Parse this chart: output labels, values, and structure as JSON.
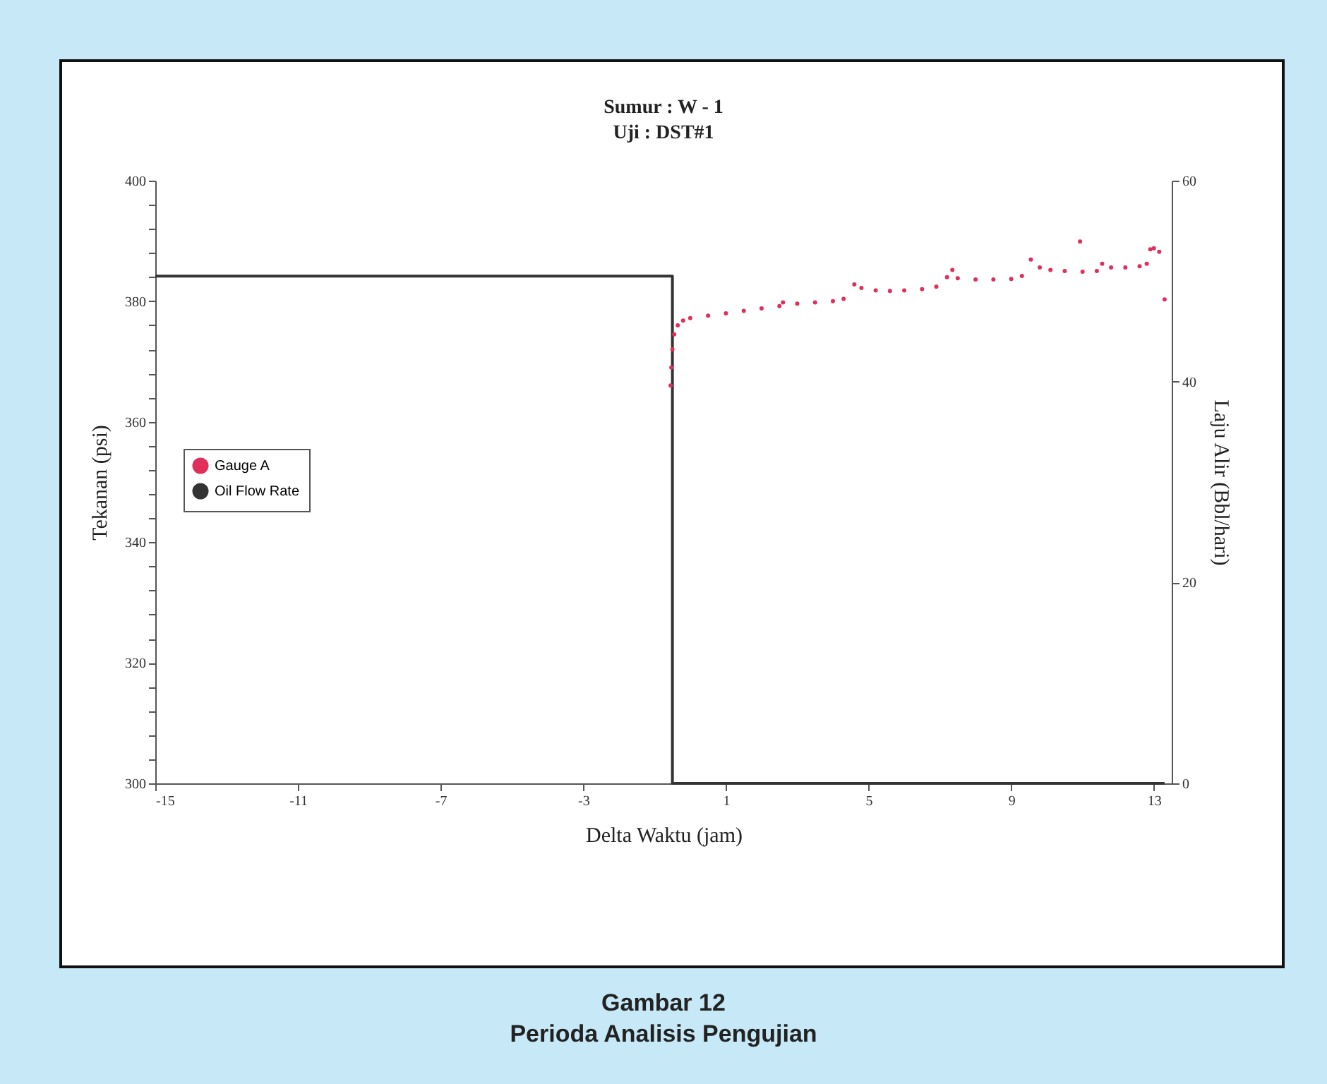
{
  "chart_data": {
    "type": "scatter",
    "title": "Sumur : W - 1",
    "subtitle": "Uji : DST#1",
    "xlabel": "Delta Waktu (jam)",
    "ylabel": "Tekanan (psi)",
    "y2label": "Laju Alir (Bbl/hari)",
    "annotations": [
      "Gambar 12",
      "Perioda Analisis Pengujian"
    ],
    "xlim": [
      -15,
      13.5
    ],
    "xticks": [
      -15,
      -11,
      -7,
      -3,
      1,
      5,
      9,
      13
    ],
    "ylim": [
      300,
      400
    ],
    "yticks": [
      300,
      {
        "value": 304,
        "label": null
      },
      {
        "value": 308,
        "label": null
      },
      {
        "value": 312,
        "label": null
      },
      {
        "value": 316,
        "label": null
      },
      320,
      {
        "value": 324,
        "label": null
      },
      {
        "value": 328,
        "label": null
      },
      {
        "value": 332,
        "label": null
      },
      {
        "value": 336,
        "label": null
      },
      340,
      {
        "value": 344,
        "label": null
      },
      {
        "value": 348,
        "label": null
      },
      {
        "value": 352,
        "label": null
      },
      {
        "value": 356,
        "label": null
      },
      360,
      {
        "value": 364,
        "label": null
      },
      {
        "value": 368,
        "label": null
      },
      {
        "value": 372,
        "label": null
      },
      {
        "value": 376,
        "label": null
      },
      380,
      {
        "value": 384,
        "label": null
      },
      {
        "value": 388,
        "label": null
      },
      {
        "value": 392,
        "label": null
      },
      {
        "value": 396,
        "label": null
      },
      400
    ],
    "y2lim": [
      0,
      60
    ],
    "y2ticks": [
      0,
      20,
      40,
      60
    ],
    "grid": false,
    "legend": "left",
    "series": [
      {
        "name": "Gauge A",
        "marker": "circle",
        "color": "#e0305a",
        "x": [
          -0.55,
          -0.53,
          -0.5,
          -0.45,
          -0.35,
          -0.2,
          0,
          0.5,
          1.0,
          1.5,
          2.0,
          2.5,
          2.6,
          3.0,
          3.5,
          4.0,
          4.3,
          4.6,
          4.8,
          5.2,
          5.6,
          6.0,
          6.5,
          6.9,
          7.2,
          7.35,
          7.5,
          8.0,
          8.5,
          9.0,
          9.3,
          9.55,
          9.8,
          10.1,
          10.5,
          10.93,
          11.0,
          11.4,
          11.55,
          11.8,
          12.2,
          12.6,
          12.8,
          12.9,
          13.0,
          13.15,
          13.3
        ],
        "values": [
          366,
          369,
          372,
          374.5,
          376,
          376.8,
          377.2,
          377.6,
          378.0,
          378.4,
          378.8,
          379.2,
          379.8,
          379.6,
          379.8,
          380.0,
          380.4,
          382.8,
          382.2,
          381.8,
          381.7,
          381.8,
          382.0,
          382.4,
          384.0,
          385.2,
          383.8,
          383.6,
          383.6,
          383.7,
          384.2,
          386.9,
          385.6,
          385.2,
          385.0,
          389.9,
          384.9,
          385.0,
          386.2,
          385.6,
          385.6,
          385.8,
          386.2,
          388.6,
          388.8,
          388.2,
          380.3
        ]
      },
      {
        "name": "Oil Flow Rate",
        "type": "line",
        "axis": "y2",
        "color": "#333333",
        "line_style": "solid",
        "x": [
          -15,
          -0.5,
          -0.5,
          13.3
        ],
        "values": [
          50.5,
          50.5,
          0,
          0
        ]
      }
    ]
  }
}
